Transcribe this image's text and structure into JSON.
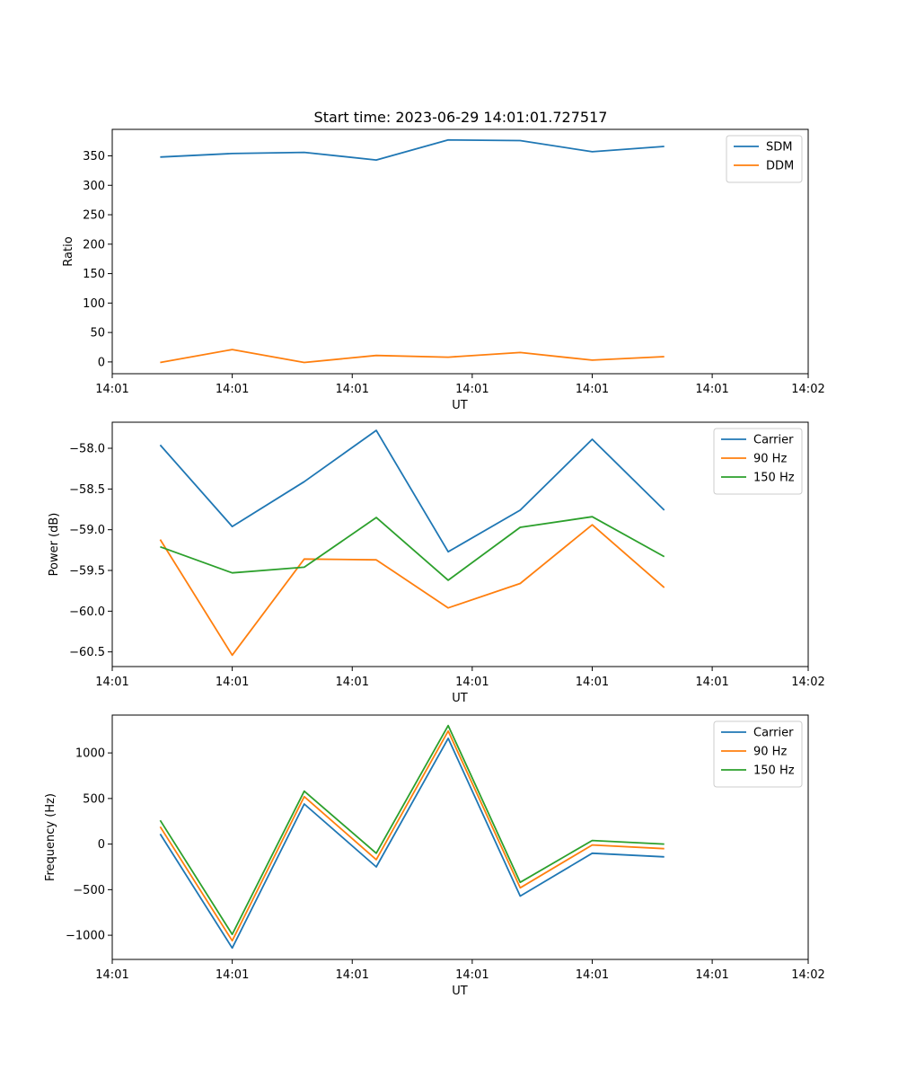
{
  "title": "Start time: 2023-06-29 14:01:01.727517",
  "chart_data": [
    {
      "type": "line",
      "ylabel": "Ratio",
      "xlabel": "UT",
      "x": [
        "14:01:01.9",
        "14:01:02.2",
        "14:01:02.5",
        "14:01:02.8",
        "14:01:03.1",
        "14:01:03.4",
        "14:01:03.7",
        "14:01:04.0"
      ],
      "xlim": [
        "14:01:01.7",
        "14:01:04.6"
      ],
      "xticks": [
        "14:01:01.7",
        "14:01:02.2",
        "14:01:02.7",
        "14:01:03.2",
        "14:01:03.7",
        "14:01:04.2",
        "14:01:04.6"
      ],
      "xtick_labels": [
        "14:01",
        "14:01",
        "14:01",
        "14:01",
        "14:01",
        "14:01",
        "14:02"
      ],
      "ylim": [
        -20,
        395
      ],
      "yticks": [
        0,
        50,
        100,
        150,
        200,
        250,
        300,
        350
      ],
      "legend": "top-right",
      "series": [
        {
          "name": "SDM",
          "color": "#1f77b4",
          "values": [
            348,
            354,
            356,
            343,
            377,
            376,
            357,
            366
          ]
        },
        {
          "name": "DDM",
          "color": "#ff7f0e",
          "values": [
            -1,
            21,
            -1,
            11,
            8,
            16,
            3,
            9
          ]
        }
      ]
    },
    {
      "type": "line",
      "ylabel": "Power (dB)",
      "xlabel": "UT",
      "x": [
        "14:01:01.9",
        "14:01:02.2",
        "14:01:02.5",
        "14:01:02.8",
        "14:01:03.1",
        "14:01:03.4",
        "14:01:03.7",
        "14:01:04.0"
      ],
      "xlim": [
        "14:01:01.7",
        "14:01:04.6"
      ],
      "xticks": [
        "14:01:01.7",
        "14:01:02.2",
        "14:01:02.7",
        "14:01:03.2",
        "14:01:03.7",
        "14:01:04.2",
        "14:01:04.6"
      ],
      "xtick_labels": [
        "14:01",
        "14:01",
        "14:01",
        "14:01",
        "14:01",
        "14:01",
        "14:02"
      ],
      "ylim": [
        -60.68,
        -57.68
      ],
      "yticks": [
        -60.5,
        -60.0,
        -59.5,
        -59.0,
        -58.5,
        -58.0
      ],
      "ytick_labels": [
        "−60.5",
        "−60.0",
        "−59.5",
        "−59.0",
        "−58.5",
        "−58.0"
      ],
      "legend": "top-right",
      "series": [
        {
          "name": "Carrier",
          "color": "#1f77b4",
          "values": [
            -57.96,
            -58.96,
            -58.41,
            -57.78,
            -59.27,
            -58.76,
            -57.89,
            -58.76
          ]
        },
        {
          "name": "90 Hz",
          "color": "#ff7f0e",
          "values": [
            -59.12,
            -60.54,
            -59.36,
            -59.37,
            -59.96,
            -59.66,
            -58.94,
            -59.71
          ]
        },
        {
          "name": "150 Hz",
          "color": "#2ca02c",
          "values": [
            -59.21,
            -59.53,
            -59.46,
            -58.85,
            -59.62,
            -58.97,
            -58.84,
            -59.33
          ]
        }
      ]
    },
    {
      "type": "line",
      "ylabel": "Frequency (Hz)",
      "xlabel": "UT",
      "x": [
        "14:01:01.9",
        "14:01:02.2",
        "14:01:02.5",
        "14:01:02.8",
        "14:01:03.1",
        "14:01:03.4",
        "14:01:03.7",
        "14:01:04.0"
      ],
      "xlim": [
        "14:01:01.7",
        "14:01:04.6"
      ],
      "xticks": [
        "14:01:01.7",
        "14:01:02.2",
        "14:01:02.7",
        "14:01:03.2",
        "14:01:03.7",
        "14:01:04.2",
        "14:01:04.6"
      ],
      "xtick_labels": [
        "14:01",
        "14:01",
        "14:01",
        "14:01",
        "14:01",
        "14:01",
        "14:02"
      ],
      "ylim": [
        -1265,
        1415
      ],
      "yticks": [
        -1000,
        -500,
        0,
        500,
        1000
      ],
      "ytick_labels": [
        "−1000",
        "−500",
        "0",
        "500",
        "1000"
      ],
      "legend": "top-right",
      "series": [
        {
          "name": "Carrier",
          "color": "#1f77b4",
          "values": [
            110,
            -1140,
            440,
            -250,
            1160,
            -570,
            -100,
            -140
          ]
        },
        {
          "name": "90 Hz",
          "color": "#ff7f0e",
          "values": [
            190,
            -1060,
            520,
            -170,
            1240,
            -480,
            -10,
            -50
          ]
        },
        {
          "name": "150 Hz",
          "color": "#2ca02c",
          "values": [
            260,
            -990,
            580,
            -100,
            1300,
            -420,
            40,
            0
          ]
        }
      ]
    }
  ]
}
